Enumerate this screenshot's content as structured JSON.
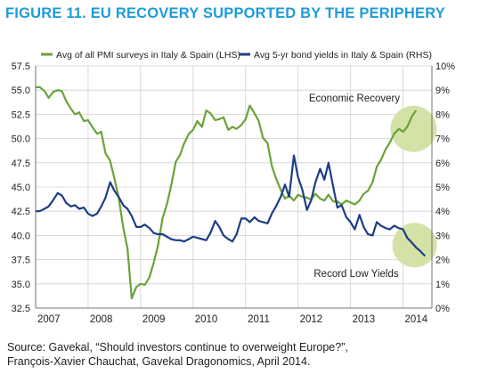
{
  "title": "FIGURE 11. EU RECOVERY SUPPORTED BY THE PERIPHERY",
  "source_line1": "Source: Gavekal, “Should investors continue to overweight Europe?”,",
  "source_line2": "François-Xavier Chauchat, Gavekal Dragonomics, April 2014.",
  "colors": {
    "pmi": "#6aa33a",
    "yield": "#1d3e85",
    "highlight": "#d4e2a8",
    "title": "#1f9bd6"
  },
  "chart_data": {
    "type": "line",
    "title": "FIGURE 11. EU RECOVERY SUPPORTED BY THE PERIPHERY",
    "x_ticks": [
      "2007",
      "2008",
      "2009",
      "2010",
      "2011",
      "2012",
      "2013",
      "2014"
    ],
    "x_range": [
      2007.0,
      2014.55
    ],
    "y_left": {
      "min": 32.5,
      "max": 57.5,
      "ticks": [
        "32.5",
        "35.0",
        "37.5",
        "40.0",
        "42.5",
        "45.0",
        "47.5",
        "50.0",
        "52.5",
        "55.0",
        "57.5"
      ]
    },
    "y_right": {
      "min": 0,
      "max": 10,
      "ticks": [
        "0%",
        "1%",
        "2%",
        "3%",
        "4%",
        "5%",
        "6%",
        "7%",
        "8%",
        "9%",
        "10%"
      ]
    },
    "legend_position": "top",
    "annotations": [
      {
        "text": "Economic Recovery",
        "x": 2013.6,
        "y_left": 51.0
      },
      {
        "text": "Record Low Yields",
        "x": 2014.28,
        "y_right": 2.6
      }
    ],
    "series": [
      {
        "name": "Avg of all PMI surveys in Italy & Spain (LHS)",
        "axis": "left",
        "x": [
          2007.0,
          2007.08,
          2007.17,
          2007.25,
          2007.33,
          2007.42,
          2007.5,
          2007.58,
          2007.67,
          2007.75,
          2007.83,
          2007.92,
          2008.0,
          2008.08,
          2008.17,
          2008.25,
          2008.33,
          2008.42,
          2008.5,
          2008.58,
          2008.67,
          2008.75,
          2008.83,
          2008.92,
          2009.0,
          2009.08,
          2009.17,
          2009.25,
          2009.33,
          2009.42,
          2009.5,
          2009.58,
          2009.67,
          2009.75,
          2009.83,
          2009.92,
          2010.0,
          2010.08,
          2010.17,
          2010.25,
          2010.33,
          2010.42,
          2010.5,
          2010.58,
          2010.67,
          2010.75,
          2010.83,
          2010.92,
          2011.0,
          2011.08,
          2011.17,
          2011.25,
          2011.33,
          2011.42,
          2011.5,
          2011.58,
          2011.67,
          2011.75,
          2011.83,
          2011.92,
          2012.0,
          2012.08,
          2012.17,
          2012.25,
          2012.33,
          2012.42,
          2012.5,
          2012.58,
          2012.67,
          2012.75,
          2012.83,
          2012.92,
          2013.0,
          2013.08,
          2013.17,
          2013.25,
          2013.33,
          2013.42,
          2013.5,
          2013.58,
          2013.67,
          2013.75,
          2013.83,
          2013.92,
          2014.0,
          2014.08,
          2014.17,
          2014.25
        ],
        "values": [
          55.3,
          55.3,
          54.9,
          54.2,
          54.8,
          55.0,
          54.9,
          53.9,
          53.1,
          52.5,
          52.7,
          51.8,
          51.9,
          51.2,
          50.5,
          50.7,
          48.5,
          47.7,
          45.9,
          44.0,
          40.8,
          38.7,
          33.5,
          34.7,
          35.0,
          34.9,
          35.7,
          37.2,
          38.9,
          41.8,
          43.2,
          45.1,
          47.6,
          48.3,
          49.5,
          50.5,
          50.9,
          51.8,
          51.2,
          52.9,
          52.6,
          51.9,
          52.0,
          52.2,
          50.9,
          51.2,
          51.0,
          51.4,
          52.0,
          53.4,
          52.6,
          51.8,
          50.1,
          49.5,
          47.2,
          45.9,
          44.7,
          43.8,
          44.1,
          43.6,
          44.2,
          44.0,
          43.9,
          43.7,
          44.3,
          43.8,
          43.6,
          44.2,
          43.5,
          43.5,
          43.2,
          43.6,
          43.4,
          43.2,
          43.6,
          44.3,
          44.6,
          45.5,
          47.1,
          47.8,
          48.9,
          49.6,
          50.5,
          51.0,
          50.7,
          51.2,
          52.3,
          52.9
        ]
      },
      {
        "name": "Avg 5-yr bond yields in Italy & Spain (RHS)",
        "axis": "right",
        "x": [
          2007.0,
          2007.08,
          2007.17,
          2007.25,
          2007.33,
          2007.42,
          2007.5,
          2007.58,
          2007.67,
          2007.75,
          2007.83,
          2007.92,
          2008.0,
          2008.08,
          2008.17,
          2008.25,
          2008.33,
          2008.42,
          2008.5,
          2008.58,
          2008.67,
          2008.75,
          2008.83,
          2008.92,
          2009.0,
          2009.08,
          2009.17,
          2009.25,
          2009.33,
          2009.42,
          2009.5,
          2009.58,
          2009.67,
          2009.75,
          2009.83,
          2009.92,
          2010.0,
          2010.08,
          2010.17,
          2010.25,
          2010.33,
          2010.42,
          2010.5,
          2010.58,
          2010.67,
          2010.75,
          2010.83,
          2010.92,
          2011.0,
          2011.08,
          2011.17,
          2011.25,
          2011.33,
          2011.42,
          2011.5,
          2011.58,
          2011.67,
          2011.75,
          2011.83,
          2011.92,
          2012.0,
          2012.08,
          2012.17,
          2012.25,
          2012.33,
          2012.42,
          2012.5,
          2012.58,
          2012.67,
          2012.75,
          2012.83,
          2012.92,
          2013.0,
          2013.08,
          2013.17,
          2013.25,
          2013.33,
          2013.42,
          2013.5,
          2013.58,
          2013.67,
          2013.75,
          2013.83,
          2013.92,
          2014.0,
          2014.08,
          2014.17,
          2014.25,
          2014.33,
          2014.42
        ],
        "values": [
          4.0,
          4.0,
          4.1,
          4.2,
          4.45,
          4.75,
          4.65,
          4.35,
          4.2,
          4.25,
          4.1,
          4.15,
          3.9,
          3.8,
          3.9,
          4.2,
          4.55,
          5.2,
          4.85,
          4.6,
          4.25,
          4.1,
          3.8,
          3.35,
          3.35,
          3.45,
          3.3,
          3.1,
          3.05,
          3.05,
          2.95,
          2.85,
          2.8,
          2.8,
          2.75,
          2.85,
          2.95,
          2.9,
          2.85,
          2.8,
          3.1,
          3.6,
          3.35,
          3.0,
          2.85,
          2.75,
          3.05,
          3.7,
          3.7,
          3.55,
          3.75,
          3.6,
          3.55,
          3.5,
          3.9,
          4.2,
          4.6,
          5.1,
          4.6,
          6.3,
          5.4,
          4.9,
          4.05,
          4.45,
          5.2,
          5.75,
          5.3,
          6.0,
          5.0,
          4.15,
          4.25,
          3.75,
          3.55,
          3.25,
          3.85,
          3.35,
          3.05,
          3.0,
          3.55,
          3.4,
          3.3,
          3.25,
          3.4,
          3.3,
          3.25,
          2.9,
          2.7,
          2.5,
          2.35,
          2.15
        ]
      }
    ]
  }
}
